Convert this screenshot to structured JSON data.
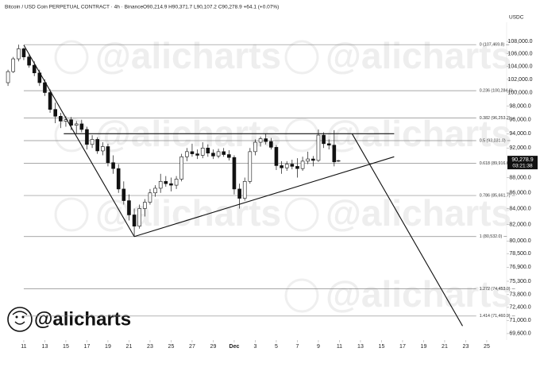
{
  "chart_data": {
    "type": "candlestick",
    "symbol": "Bitcoin / USD Coin PERPETUAL CONTRACT · 4h · Binance",
    "ohlc_text": "O90,214.9 H90,371.7 L90,107.2 C90,278.9 +64.1 (+0.07%)",
    "currency": "USDC",
    "brand": "@alicharts",
    "log_scale": true,
    "up_color": "#ffffff",
    "down_color": "#111111",
    "xlim": [
      -2.26,
      45.89
    ],
    "xticks": [
      {
        "value": 0,
        "label": "11"
      },
      {
        "value": 2,
        "label": "13"
      },
      {
        "value": 4,
        "label": "15"
      },
      {
        "value": 6,
        "label": "17"
      },
      {
        "value": 8,
        "label": "19"
      },
      {
        "value": 10,
        "label": "21"
      },
      {
        "value": 12,
        "label": "23"
      },
      {
        "value": 14,
        "label": "25"
      },
      {
        "value": 16,
        "label": "27"
      },
      {
        "value": 18,
        "label": "29"
      },
      {
        "value": 20,
        "label": "Dec"
      },
      {
        "value": 22,
        "label": "3"
      },
      {
        "value": 24,
        "label": "5"
      },
      {
        "value": 26,
        "label": "7"
      },
      {
        "value": 28,
        "label": "9"
      },
      {
        "value": 30,
        "label": "11"
      },
      {
        "value": 32,
        "label": "13"
      },
      {
        "value": 34,
        "label": "15"
      },
      {
        "value": 36,
        "label": "17"
      },
      {
        "value": 38,
        "label": "19"
      },
      {
        "value": 40,
        "label": "21"
      },
      {
        "value": 42,
        "label": "23"
      },
      {
        "value": 44,
        "label": "25"
      }
    ],
    "ylim": [
      68930,
      111150
    ],
    "yticks": [
      {
        "value": 108000,
        "label": "108,000.0"
      },
      {
        "value": 106000,
        "label": "106,000.0"
      },
      {
        "value": 104000,
        "label": "104,000.0"
      },
      {
        "value": 102000,
        "label": "102,000.0"
      },
      {
        "value": 100000,
        "label": "100,000.0"
      },
      {
        "value": 98000,
        "label": "98,000.0"
      },
      {
        "value": 96000,
        "label": "96,000.0"
      },
      {
        "value": 94000,
        "label": "94,000.0"
      },
      {
        "value": 92000,
        "label": "92,000.0"
      },
      {
        "value": 88000,
        "label": "88,000.0"
      },
      {
        "value": 86000,
        "label": "86,000.0"
      },
      {
        "value": 84000,
        "label": "84,000.0"
      },
      {
        "value": 82000,
        "label": "82,000.0"
      },
      {
        "value": 80000,
        "label": "80,000.0"
      },
      {
        "value": 78500,
        "label": "78,500.0"
      },
      {
        "value": 76900,
        "label": "76,900.0"
      },
      {
        "value": 75300,
        "label": "75,300.0"
      },
      {
        "value": 73800,
        "label": "73,800.0"
      },
      {
        "value": 72400,
        "label": "72,400.0"
      },
      {
        "value": 71000,
        "label": "71,000.0"
      },
      {
        "value": 69600,
        "label": "69,600.0"
      }
    ],
    "last_price": {
      "value": 90278.9,
      "label": "90,278.9"
    },
    "countdown": "03:21:38",
    "candles": {
      "x": [
        -1.5,
        -1.0,
        -0.5,
        0.0,
        0.5,
        1.0,
        1.5,
        2.0,
        2.5,
        3.0,
        3.5,
        4.0,
        4.5,
        5.0,
        5.5,
        6.0,
        6.5,
        7.0,
        7.5,
        8.0,
        8.5,
        9.0,
        9.5,
        10.0,
        10.5,
        11.0,
        11.5,
        12.0,
        12.5,
        13.0,
        13.5,
        14.0,
        14.5,
        15.0,
        15.5,
        16.0,
        16.5,
        17.0,
        17.5,
        18.0,
        18.5,
        19.0,
        19.5,
        20.0,
        20.5,
        21.0,
        21.5,
        22.0,
        22.5,
        23.0,
        23.5,
        24.0,
        24.5,
        25.0,
        25.5,
        26.0,
        26.5,
        27.0,
        27.5,
        28.0,
        28.5,
        29.0,
        29.5,
        29.9
      ],
      "open": [
        101500,
        103200,
        105200,
        106800,
        105500,
        104200,
        103000,
        101500,
        100000,
        97500,
        96500,
        95800,
        96000,
        95200,
        95400,
        94600,
        92500,
        93200,
        91600,
        92200,
        90000,
        89200,
        86500,
        85000,
        83200,
        81800,
        84000,
        84800,
        86000,
        86600,
        87500,
        87200,
        87000,
        87800,
        90800,
        91500,
        91200,
        91000,
        92000,
        91300,
        90900,
        91500,
        91100,
        90700,
        86500,
        85300,
        87500,
        91500,
        92800,
        93300,
        92900,
        92100,
        89600,
        89300,
        89800,
        89500,
        89200,
        90200,
        90500,
        90300,
        93800,
        92600,
        92400,
        90214.9
      ],
      "high": [
        103500,
        105500,
        107470,
        107000,
        106000,
        104800,
        103500,
        102000,
        100500,
        98500,
        97000,
        96500,
        96400,
        95800,
        96000,
        95000,
        93800,
        93500,
        92800,
        92600,
        91000,
        89800,
        87500,
        85800,
        84000,
        84500,
        85200,
        86500,
        87000,
        88500,
        88200,
        88000,
        88200,
        91200,
        92000,
        92600,
        91800,
        92800,
        92500,
        91800,
        91900,
        92000,
        91700,
        91000,
        87200,
        88000,
        92000,
        93200,
        93600,
        94000,
        93400,
        92400,
        90200,
        90200,
        90400,
        90600,
        90800,
        91500,
        90900,
        94600,
        94200,
        93200,
        94500,
        90371.7
      ],
      "low": [
        101000,
        103000,
        104800,
        105000,
        103800,
        102500,
        101000,
        99500,
        97000,
        95500,
        94800,
        95000,
        94500,
        94000,
        94200,
        91800,
        92000,
        91200,
        91000,
        89500,
        88500,
        86000,
        84500,
        82500,
        80532,
        81500,
        83000,
        84500,
        85500,
        86000,
        86800,
        86200,
        86500,
        87500,
        90200,
        90800,
        90500,
        90600,
        90800,
        90500,
        90600,
        90800,
        90300,
        85800,
        84000,
        85000,
        87200,
        91000,
        92200,
        92500,
        91800,
        89000,
        88500,
        88900,
        89100,
        88000,
        88900,
        89800,
        89500,
        90100,
        92000,
        91800,
        89500,
        90107.2
      ],
      "close": [
        103200,
        105200,
        106800,
        105500,
        104200,
        103000,
        101500,
        100000,
        97500,
        96500,
        95800,
        96000,
        95200,
        95400,
        94600,
        92500,
        93200,
        91600,
        92200,
        90000,
        89200,
        86500,
        85000,
        83200,
        81800,
        84000,
        84800,
        86000,
        86600,
        87500,
        87200,
        87000,
        87800,
        90800,
        91500,
        91200,
        91000,
        92000,
        91300,
        90900,
        91500,
        91100,
        90700,
        86500,
        85300,
        87500,
        91500,
        92800,
        93300,
        92900,
        92100,
        89600,
        89300,
        89800,
        89500,
        89200,
        90200,
        90500,
        90300,
        93800,
        92600,
        92400,
        90100,
        90278.9
      ]
    },
    "fib_levels": [
      {
        "value": 107469.8,
        "label": "0 (107,469.8)"
      },
      {
        "value": 100284.6,
        "label": "0.236 (100,284.6)"
      },
      {
        "value": 96253.2,
        "label": "0.382 (96,253.2)"
      },
      {
        "value": 93031.0,
        "label": "0.5 (93,031.0)"
      },
      {
        "value": 89916.6,
        "label": "0.618 (89,916.6)"
      },
      {
        "value": 85661.7,
        "label": "0.786 (85,661.7)"
      },
      {
        "value": 80532.0,
        "label": "1 (80,532.0)"
      },
      {
        "value": 74453.0,
        "label": "1.272 (74,453.0)"
      },
      {
        "value": 71460.9,
        "label": "1.414 (71,460.9)"
      }
    ],
    "fib_span": [
      0,
      43
    ],
    "trend_lines": [
      {
        "x": [
          0,
          10.5
        ],
        "y": [
          107400,
          80532
        ]
      },
      {
        "x": [
          10.5,
          35.2
        ],
        "y": [
          80532,
          90800
        ]
      },
      {
        "x": [
          3.8,
          35.2
        ],
        "y": [
          94000,
          94000
        ]
      },
      {
        "x": [
          31.2,
          41.7
        ],
        "y": [
          94000,
          70400
        ]
      }
    ]
  }
}
